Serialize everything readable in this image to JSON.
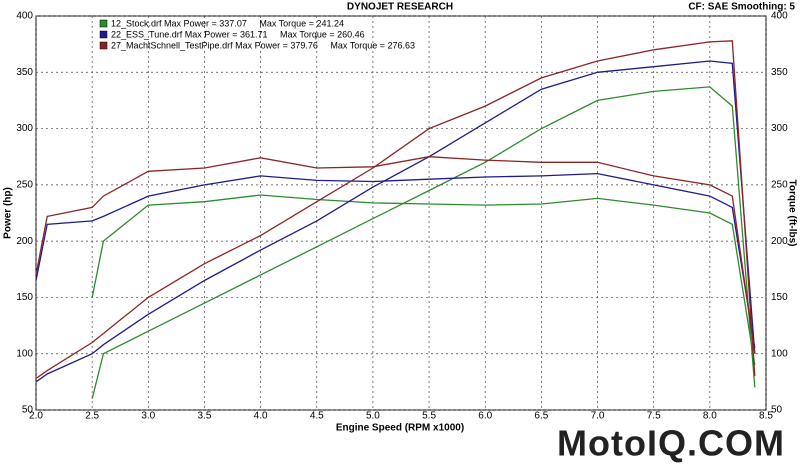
{
  "chart_data": {
    "type": "line",
    "title": "DYNOJET RESEARCH",
    "subtitle": "CF: SAE  Smoothing: 5",
    "x_label": "Engine Speed (RPM x1000)",
    "y_label": "Power (hp)",
    "y2_label": "Torque (ft-lbs)",
    "watermark": "MotoIQ.COM",
    "x": [
      2.0,
      2.1,
      2.5,
      2.6,
      3.0,
      3.5,
      4.0,
      4.5,
      5.0,
      5.5,
      6.0,
      6.5,
      7.0,
      7.5,
      8.0,
      8.2,
      8.4
    ],
    "xlim": [
      2,
      8.5
    ],
    "xticks": [
      {
        "value": 2,
        "label": "2.0"
      },
      2.5,
      {
        "value": 3,
        "label": "3.0"
      },
      3.5,
      {
        "value": 4,
        "label": "4.0"
      },
      4.5,
      {
        "value": 5,
        "label": "5.0"
      },
      5.5,
      {
        "value": 6,
        "label": "6.0"
      },
      6.5,
      {
        "value": 7,
        "label": "7.0"
      },
      7.5,
      {
        "value": 8,
        "label": "8.0"
      },
      8.5
    ],
    "ylim": [
      50,
      400
    ],
    "yticks": [
      50,
      100,
      150,
      200,
      250,
      300,
      350,
      400
    ],
    "y2lim": [
      50,
      400
    ],
    "y2ticks": [
      50,
      100,
      150,
      200,
      250,
      300,
      350,
      400
    ],
    "grid": true,
    "legend": "upper left",
    "series": [
      {
        "name": "12_Stock.drf Max Power = 337.07     Max Torque = 241.24",
        "color": "#2f8a2f",
        "values": [
          null,
          null,
          60,
          100,
          120,
          145,
          170,
          195,
          220,
          245,
          270,
          300,
          325,
          333,
          337,
          320,
          70
        ],
        "torque": [
          null,
          null,
          150,
          200,
          232,
          235,
          241,
          237,
          234,
          233,
          232,
          233,
          238,
          232,
          225,
          215,
          90
        ]
      },
      {
        "name": "22_ESS_Tune.drf Max Power = 361.71     Max Torque = 260.46",
        "color": "#1c1c8c",
        "values": [
          75,
          82,
          100,
          108,
          135,
          165,
          192,
          218,
          248,
          275,
          305,
          335,
          350,
          355,
          360,
          358,
          100
        ],
        "torque": [
          165,
          215,
          218,
          222,
          240,
          250,
          258,
          254,
          253,
          255,
          257,
          258,
          260,
          250,
          240,
          230,
          105
        ]
      },
      {
        "name": "27_MachtSchnell_TestPipe.drf Max Power = 379.76     Max Torque = 276.63",
        "color": "#8c2424",
        "values": [
          78,
          85,
          110,
          118,
          150,
          180,
          205,
          235,
          265,
          300,
          320,
          345,
          360,
          370,
          377,
          378,
          80
        ],
        "torque": [
          170,
          222,
          230,
          240,
          262,
          265,
          274,
          265,
          266,
          275,
          272,
          270,
          270,
          258,
          250,
          240,
          100
        ]
      }
    ]
  }
}
